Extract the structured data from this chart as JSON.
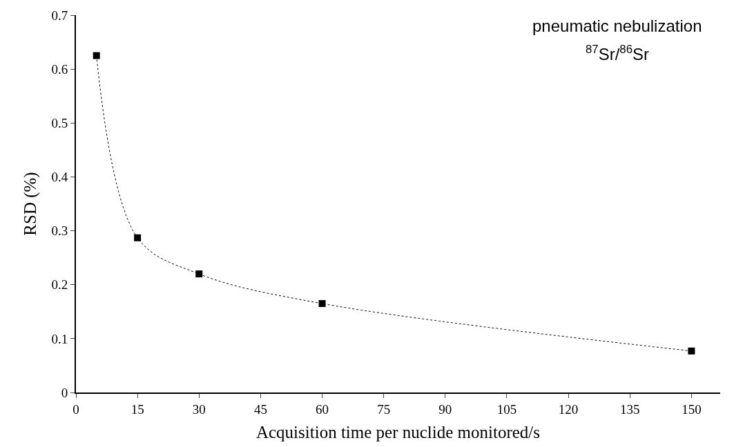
{
  "chart_data": {
    "type": "line",
    "xlabel": "Acquisition time per nuclide monitored/s",
    "ylabel": "RSD (%)",
    "annotations": [
      "pneumatic nebulization",
      "$^{87}$Sr/$^{86}$Sr"
    ],
    "x": [
      5,
      15,
      30,
      60,
      150
    ],
    "series": [
      {
        "color": "#000000",
        "values": [
          0.625,
          0.287,
          0.22,
          0.165,
          0.077
        ]
      }
    ],
    "xlim": [
      0,
      157
    ],
    "xticks": [
      0,
      15,
      30,
      45,
      60,
      75,
      90,
      105,
      120,
      135,
      150
    ],
    "ylim": [
      0,
      0.7
    ],
    "yticks": [
      0,
      0.1,
      0.2,
      0.3,
      0.4,
      0.5,
      0.6,
      0.7
    ],
    "marker": "square",
    "line_style": "dotted"
  }
}
